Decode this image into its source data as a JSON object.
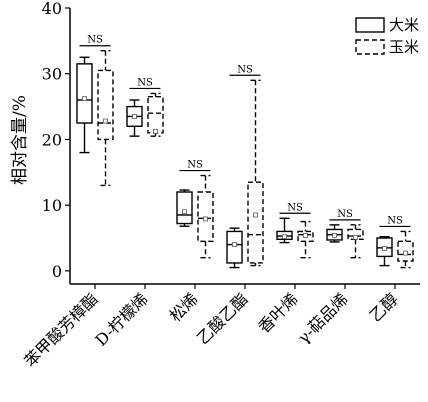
{
  "chart_data": {
    "type": "box",
    "ylabel": "相对含量/%",
    "ylim": [
      -2,
      40
    ],
    "yticks": [
      0,
      10,
      20,
      30,
      40
    ],
    "categories": [
      "苯甲酸芳樟酯",
      "D-柠檬烯",
      "松烯",
      "乙酸乙酯",
      "香叶烯",
      "γ-萜品烯",
      "乙醇"
    ],
    "significance": [
      "NS",
      "NS",
      "NS",
      "NS",
      "NS",
      "NS",
      "NS"
    ],
    "legend": {
      "position": "top-right",
      "items": [
        "大米",
        "玉米"
      ]
    },
    "series": [
      {
        "name": "大米",
        "style": "solid",
        "boxes": [
          {
            "min": 18,
            "q1": 22.5,
            "median": 26,
            "q3": 31.5,
            "max": 32.5,
            "mean": 26.2
          },
          {
            "min": 20.5,
            "q1": 22,
            "median": 23.5,
            "q3": 25,
            "max": 26,
            "mean": 23.5
          },
          {
            "min": 6.8,
            "q1": 7.2,
            "median": 8.5,
            "q3": 12,
            "max": 12.3,
            "mean": 9
          },
          {
            "min": 0.5,
            "q1": 1.2,
            "median": 4,
            "q3": 6,
            "max": 6.5,
            "mean": 4
          },
          {
            "min": 4.3,
            "q1": 4.8,
            "median": 5.3,
            "q3": 6,
            "max": 8,
            "mean": 5.2
          },
          {
            "min": 4.4,
            "q1": 4.7,
            "median": 5.5,
            "q3": 6.3,
            "max": 7,
            "mean": 5.4
          },
          {
            "min": 0.8,
            "q1": 2.2,
            "median": 3.5,
            "q3": 5,
            "max": 5.2,
            "mean": 3.4
          }
        ]
      },
      {
        "name": "玉米",
        "style": "dashed",
        "boxes": [
          {
            "min": 13,
            "q1": 20,
            "median": 22.5,
            "q3": 30.5,
            "max": 33.5,
            "mean": 22.8
          },
          {
            "min": 20.5,
            "q1": 21,
            "median": 24,
            "q3": 26.5,
            "max": 27,
            "mean": 21.2
          },
          {
            "min": 2,
            "q1": 4.5,
            "median": 8,
            "q3": 12,
            "max": 14.5,
            "mean": 7.9
          },
          {
            "min": 0.8,
            "q1": 1.2,
            "median": 5.5,
            "q3": 13.5,
            "max": 29,
            "mean": 8.5
          },
          {
            "min": 2,
            "q1": 4.5,
            "median": 5.5,
            "q3": 6,
            "max": 7.5,
            "mean": 5.4
          },
          {
            "min": 2,
            "q1": 4.8,
            "median": 5.3,
            "q3": 6.3,
            "max": 7,
            "mean": 5.1
          },
          {
            "min": 0.5,
            "q1": 1.5,
            "median": 2.5,
            "q3": 4.5,
            "max": 6,
            "mean": 2.7
          }
        ]
      }
    ]
  }
}
